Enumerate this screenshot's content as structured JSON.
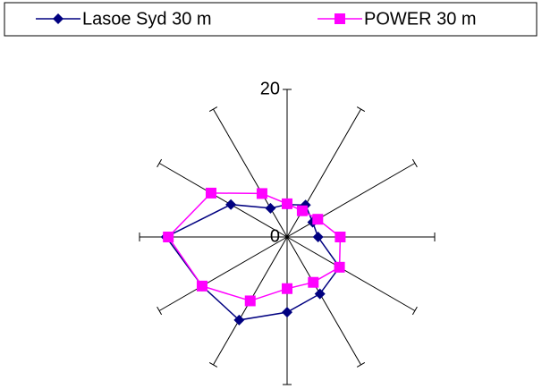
{
  "chart_data": {
    "type": "radar",
    "categories": [
      null,
      null,
      null,
      null,
      null,
      null,
      null,
      null,
      null,
      null,
      null,
      null
    ],
    "series": [
      {
        "name": "Lasoe Syd 30 m",
        "color": "#000080",
        "marker": "diamond",
        "values": [
          4.4,
          5.0,
          4.0,
          4.2,
          8.2,
          8.9,
          10.2,
          13.0,
          13.3,
          16.4,
          8.8,
          4.5
        ]
      },
      {
        "name": "POWER 30 m",
        "color": "#ff00ff",
        "marker": "square",
        "values": [
          4.5,
          4.1,
          4.8,
          7.2,
          8.2,
          7.1,
          7.0,
          10.0,
          13.3,
          16.1,
          11.9,
          6.8
        ]
      }
    ],
    "ylim": [
      0,
      20
    ],
    "yticks": [
      0,
      20
    ],
    "legend": "top"
  }
}
